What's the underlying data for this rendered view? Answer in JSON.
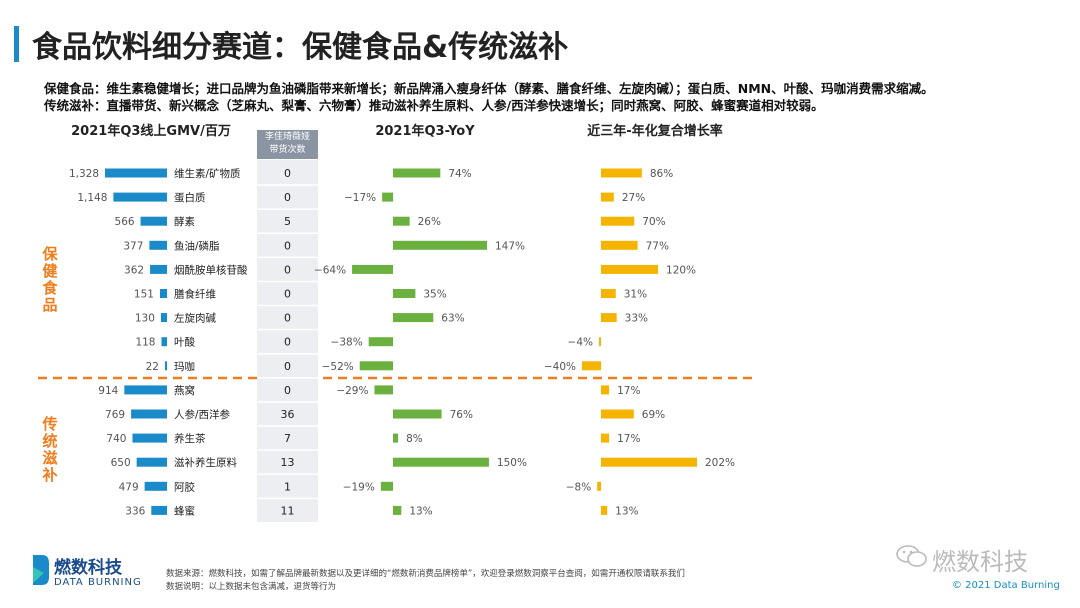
{
  "title": "食品饮料细分赛道：保健食品&传统滋补",
  "description": {
    "line1": "保健食品：维生素稳健增长；进口品牌为鱼油磷脂带来新增长；新品牌涌入瘦身纤体（酵素、膳食纤维、左旋肉碱）；蛋白质、NMN、叶酸、玛咖消费需求缩减。",
    "line2": "传统滋补：直播带货、新兴概念（芝麻丸、梨膏、六物膏）推动滋补养生原料、人参/西洋参快速增长；同时燕窝、阿胶、蜂蜜赛道相对较弱。"
  },
  "columns": {
    "gmv_title": "2021年Q3线上GMV/百万",
    "kol_header_line1": "李佳琦薇娅",
    "kol_header_line2": "带货次数",
    "yoy_title": "2021年Q3-YoY",
    "cagr_title": "近三年-年化复合增长率"
  },
  "groups": {
    "health": "保健食品",
    "tonic": "传统滋补"
  },
  "colors": {
    "gmv": "#1a8bc8",
    "yoy": "#6ab13f",
    "cagr": "#f4b400",
    "accent": "#1a8bc8",
    "divider": "#f07d1e",
    "group_label": "#f07d1e"
  },
  "chart_data": {
    "type": "bar",
    "title": "食品饮料细分赛道：保健食品&传统滋补",
    "categories": [
      "维生素/矿物质",
      "蛋白质",
      "酵素",
      "鱼油/磷脂",
      "烟酰胺单核苷酸",
      "膳食纤维",
      "左旋肉碱",
      "叶酸",
      "玛咖",
      "燕窝",
      "人参/西洋参",
      "养生茶",
      "滋补养生原料",
      "阿胶",
      "蜂蜜"
    ],
    "groups": [
      {
        "name": "保健食品",
        "range": [
          0,
          8
        ]
      },
      {
        "name": "传统滋补",
        "range": [
          9,
          14
        ]
      }
    ],
    "series": [
      {
        "name": "2021年Q3线上GMV/百万",
        "values": [
          1328,
          1148,
          566,
          377,
          362,
          151,
          130,
          118,
          22,
          914,
          769,
          740,
          650,
          479,
          336
        ],
        "labels": [
          "1,328",
          "1,148",
          "566",
          "377",
          "362",
          "151",
          "130",
          "118",
          "22",
          "914",
          "769",
          "740",
          "650",
          "479",
          "336"
        ]
      },
      {
        "name": "李佳琦薇娅带货次数",
        "values": [
          0,
          0,
          5,
          0,
          0,
          0,
          0,
          0,
          0,
          0,
          36,
          7,
          13,
          1,
          11
        ]
      },
      {
        "name": "2021年Q3-YoY",
        "values": [
          74,
          -17,
          26,
          147,
          -64,
          35,
          63,
          -38,
          -52,
          -29,
          76,
          8,
          150,
          -19,
          13
        ],
        "unit": "%"
      },
      {
        "name": "近三年-年化复合增长率",
        "values": [
          86,
          27,
          70,
          77,
          120,
          31,
          33,
          -4,
          -40,
          17,
          69,
          17,
          202,
          -8,
          13
        ],
        "unit": "%"
      }
    ]
  },
  "footer": {
    "logo_cn": "燃数科技",
    "logo_en": "DATA BURNING",
    "source_line1": "数据来源：燃数科技，如需了解品牌最新数据以及更详细的“燃数新消费品牌榜单”，欢迎登录燃数洞察平台查阅，如需开通权限请联系我们",
    "source_line2": "数据说明：以上数据未包含满减，退货等行为",
    "watermark": "燃数科技",
    "copyright": "© 2021 Data Burning"
  }
}
